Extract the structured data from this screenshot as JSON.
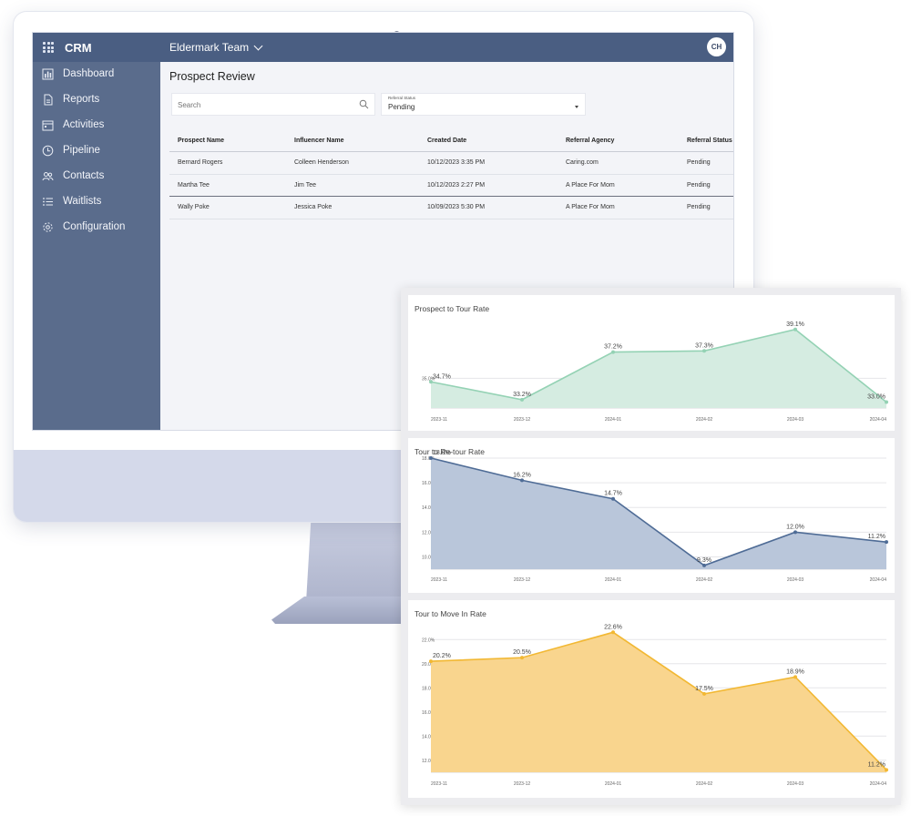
{
  "app": {
    "brand": "CRM",
    "team": "Eldermark Team",
    "avatar_initials": "CH"
  },
  "sidebar": {
    "items": [
      {
        "label": "Dashboard",
        "icon": "bar-chart-icon"
      },
      {
        "label": "Reports",
        "icon": "document-icon"
      },
      {
        "label": "Activities",
        "icon": "calendar-icon"
      },
      {
        "label": "Pipeline",
        "icon": "clock-icon"
      },
      {
        "label": "Contacts",
        "icon": "people-icon"
      },
      {
        "label": "Waitlists",
        "icon": "list-icon"
      },
      {
        "label": "Configuration",
        "icon": "gear-icon"
      }
    ]
  },
  "page": {
    "title": "Prospect Review",
    "search_placeholder": "Search",
    "status_filter_label": "Referral Status",
    "status_filter_value": "Pending"
  },
  "table": {
    "headers": [
      "Prospect Name",
      "Influencer Name",
      "Created Date",
      "Referral Agency",
      "Referral Status"
    ],
    "rows": [
      [
        "Bernard Rogers",
        "Colleen Henderson",
        "10/12/2023 3:35 PM",
        "Caring.com",
        "Pending"
      ],
      [
        "Martha Tee",
        "Jim Tee",
        "10/12/2023 2:27 PM",
        "A Place For Mom",
        "Pending"
      ],
      [
        "Wally Poke",
        "Jessica Poke",
        "10/09/2023 5:30 PM",
        "A Place For Mom",
        "Pending"
      ]
    ]
  },
  "colors": {
    "sidebar": "#5a6c8c",
    "topbar": "#4a5e82",
    "green_line": "#94d2b4",
    "green_fill": "#d5ece1",
    "blue_line": "#4f6c96",
    "blue_fill": "#b9c6da",
    "orange_line": "#f2b833",
    "orange_fill": "#f9d58e"
  },
  "chart_data": [
    {
      "type": "area",
      "title": "Prospect to Tour Rate",
      "x": [
        "2023-11",
        "2023-12",
        "2024-01",
        "2024-02",
        "2024-03",
        "2024-04"
      ],
      "values": [
        34.7,
        33.2,
        37.2,
        37.3,
        39.1,
        33.0
      ],
      "labels": [
        "34.7%",
        "33.2%",
        "37.2%",
        "37.3%",
        "39.1%",
        "33.0%"
      ],
      "yticks": [
        35.0
      ],
      "ytick_labels": [
        "35.0%"
      ],
      "ylim": [
        32.5,
        40.0
      ],
      "line_color": "#94d2b4",
      "fill_color": "#d5ece1"
    },
    {
      "type": "area",
      "title": "Tour to Re-tour Rate",
      "x": [
        "2023-11",
        "2023-12",
        "2024-01",
        "2024-02",
        "2024-03",
        "2024-04"
      ],
      "values": [
        18.0,
        16.2,
        14.7,
        9.3,
        12.0,
        11.2
      ],
      "labels": [
        "18.0%",
        "16.2%",
        "14.7%",
        "9.3%",
        "12.0%",
        "11.2%"
      ],
      "yticks": [
        10.0,
        12.0,
        14.0,
        16.0,
        18.0
      ],
      "ytick_labels": [
        "10.0%",
        "12.0%",
        "14.0%",
        "16.0%",
        "18.0%"
      ],
      "ylim": [
        9.0,
        18.0
      ],
      "line_color": "#4f6c96",
      "fill_color": "#b9c6da"
    },
    {
      "type": "area",
      "title": "Tour to Move In Rate",
      "x": [
        "2023-11",
        "2023-12",
        "2024-01",
        "2024-02",
        "2024-03",
        "2024-04"
      ],
      "values": [
        20.2,
        20.5,
        22.6,
        17.5,
        18.9,
        11.2
      ],
      "labels": [
        "20.2%",
        "20.5%",
        "22.6%",
        "17.5%",
        "18.9%",
        "11.2%"
      ],
      "yticks": [
        12.0,
        14.0,
        16.0,
        18.0,
        20.0,
        22.0
      ],
      "ytick_labels": [
        "12.0%",
        "14.0%",
        "16.0%",
        "18.0%",
        "20.0%",
        "22.0%"
      ],
      "ylim": [
        11.0,
        23.0
      ],
      "line_color": "#f2b833",
      "fill_color": "#f9d58e"
    }
  ]
}
